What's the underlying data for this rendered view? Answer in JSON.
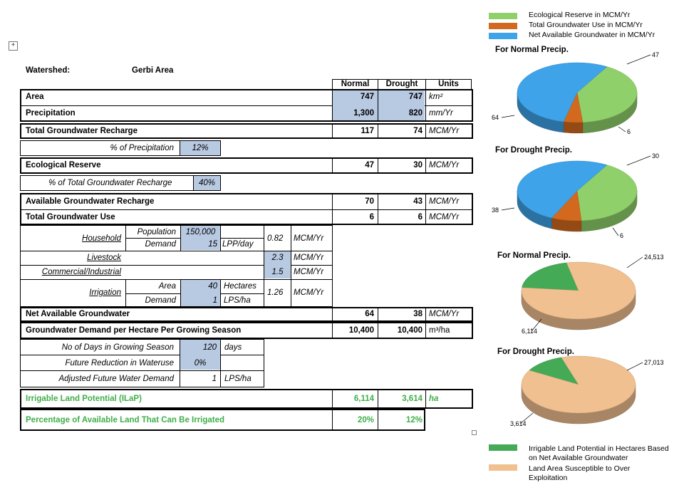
{
  "header": {
    "watershed_label": "Watershed:",
    "watershed_value": "Gerbi Area"
  },
  "columns": {
    "normal": "Normal",
    "drought": "Drought",
    "units": "Units"
  },
  "rows": {
    "area": {
      "label": "Area",
      "normal": "747",
      "drought": "747",
      "units": "km²"
    },
    "precip": {
      "label": "Precipitation",
      "normal": "1,300",
      "drought": "820",
      "units": "mm/Yr"
    },
    "recharge": {
      "label": "Total Groundwater Recharge",
      "normal": "117",
      "drought": "74",
      "units": "MCM/Yr"
    },
    "pct_precip": {
      "label": "% of Precipitation",
      "value": "12%"
    },
    "eco": {
      "label": "Ecological Reserve",
      "normal": "47",
      "drought": "30",
      "units": "MCM/Yr"
    },
    "pct_recharge": {
      "label": "% of Total Groundwater Recharge",
      "value": "40%"
    },
    "avail": {
      "label": "Available Groundwater Recharge",
      "normal": "70",
      "drought": "43",
      "units": "MCM/Yr"
    },
    "use": {
      "label": "Total Groundwater Use",
      "normal": "6",
      "drought": "6",
      "units": "MCM/Yr"
    },
    "household": {
      "label": "Household",
      "pop_label": "Population",
      "pop_value": "150,000",
      "demand_label": "Demand",
      "demand_value": "15",
      "demand_units": "LPP/day",
      "total": "0.82",
      "units": "MCM/Yr"
    },
    "livestock": {
      "label": "Livestock",
      "total": "2.3",
      "units": "MCM/Yr"
    },
    "commercial": {
      "label": "Commercial/Industrial",
      "total": "1.5",
      "units": "MCM/Yr"
    },
    "irrigation": {
      "label": "Irrigation",
      "area_label": "Area",
      "area_value": "40",
      "area_units": "Hectares",
      "demand_label": "Demand",
      "demand_value": "1",
      "demand_units": "LPS/ha",
      "total": "1.26",
      "units": "MCM/Yr"
    },
    "net": {
      "label": "Net Available Groundwater",
      "normal": "64",
      "drought": "38",
      "units": "MCM/Yr"
    },
    "demand_ha": {
      "label": "Groundwater Demand per Hectare Per Growing Season",
      "normal": "10,400",
      "drought": "10,400",
      "units": "m³/ha"
    },
    "days": {
      "label": "No of Days in Growing Season",
      "value": "120",
      "units": "days"
    },
    "reduction": {
      "label": "Future Reduction in Wateruse",
      "value": "0%"
    },
    "adjusted": {
      "label": "Adjusted Future Water Demand",
      "value": "1",
      "units": "LPS/ha"
    },
    "ilap": {
      "label": "Irrigable Land Potential (ILaP)",
      "normal": "6,114",
      "drought": "3,614",
      "units": "ha"
    },
    "pct_land": {
      "label": "Percentage of Available Land That Can Be Irrigated",
      "normal": "20%",
      "drought": "12%"
    }
  },
  "legend_top": [
    {
      "label": "Ecological Reserve in MCM/Yr",
      "color": "#8fd06a"
    },
    {
      "label": "Total Groundwater Use in MCM/Yr",
      "color": "#d2691e"
    },
    {
      "label": "Net Available Groundwater in MCM/Yr",
      "color": "#3ea3e8"
    }
  ],
  "legend_bottom": [
    {
      "label": "Irrigable Land Potential in Hectares Based",
      "label2": "on Net Available Groundwater",
      "color": "#44aa55"
    },
    {
      "label": "Land Area Susceptible to Over",
      "label2": "Exploitation",
      "color": "#f0c090"
    }
  ],
  "chart_data": [
    {
      "type": "pie",
      "title": "For Normal Precip.",
      "labels": [
        "Ecological Reserve in MCM/Yr",
        "Total Groundwater Use in MCM/Yr",
        "Net Available Groundwater in MCM/Yr"
      ],
      "values": [
        47,
        6,
        64
      ],
      "data_labels": [
        "47",
        "6",
        "64"
      ],
      "colors": [
        "#8fd06a",
        "#d2691e",
        "#3ea3e8"
      ]
    },
    {
      "type": "pie",
      "title": "For Drought Precip.",
      "labels": [
        "Ecological Reserve in MCM/Yr",
        "Total Groundwater Use in MCM/Yr",
        "Net Available Groundwater in MCM/Yr"
      ],
      "values": [
        30,
        6,
        38
      ],
      "data_labels": [
        "30",
        "6",
        "38"
      ],
      "colors": [
        "#8fd06a",
        "#d2691e",
        "#3ea3e8"
      ]
    },
    {
      "type": "pie",
      "title": "For Normal Precip.",
      "labels": [
        "Irrigable Land Potential in Hectares Based on Net Available Groundwater",
        "Land Area Susceptible to Over Exploitation"
      ],
      "values": [
        6114,
        24513
      ],
      "data_labels": [
        "6,114",
        "24,513"
      ],
      "colors": [
        "#44aa55",
        "#f0c090"
      ]
    },
    {
      "type": "pie",
      "title": "For Drought Precip.",
      "labels": [
        "Irrigable Land Potential in Hectares Based on Net Available Groundwater",
        "Land Area Susceptible to Over Exploitation"
      ],
      "values": [
        3614,
        27013
      ],
      "data_labels": [
        "3,614",
        "27,013"
      ],
      "colors": [
        "#44aa55",
        "#f0c090"
      ]
    }
  ]
}
